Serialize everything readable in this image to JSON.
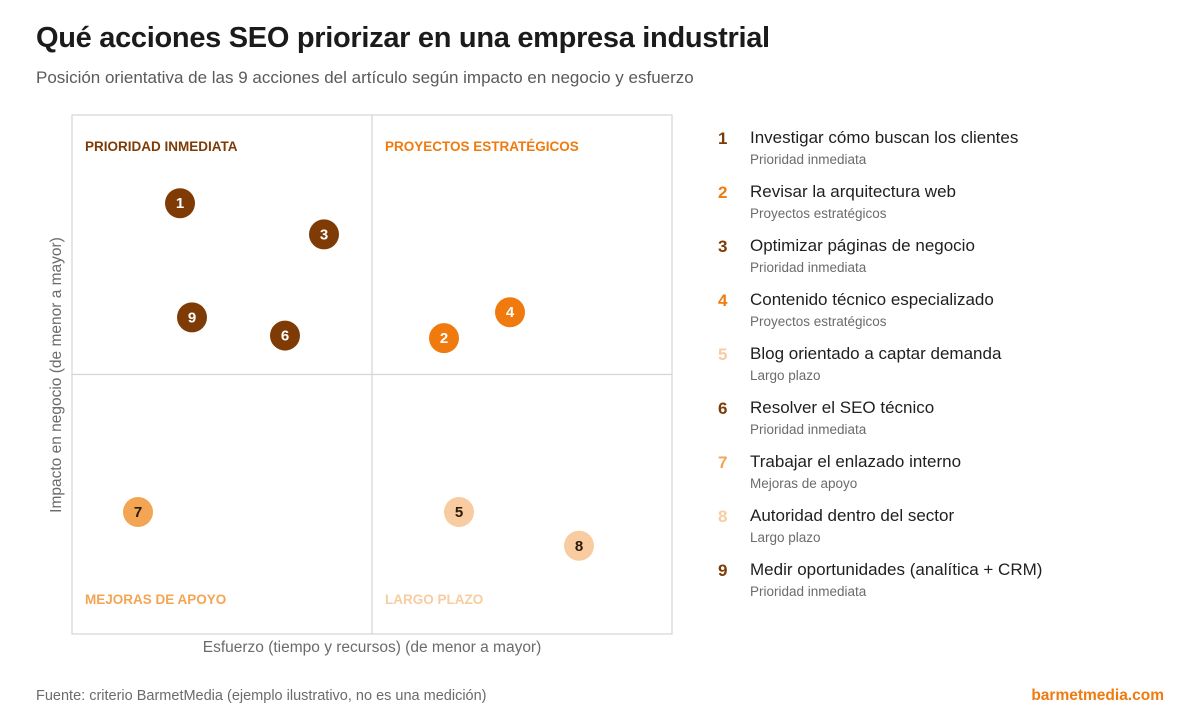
{
  "header": {
    "title": "Qué acciones SEO priorizar en una empresa industrial",
    "subtitle": "Posición orientativa de las 9 acciones del artículo según impacto en negocio y esfuerzo"
  },
  "colors": {
    "Prioridad inmediata": "#7f3b05",
    "Proyectos estratégicos": "#f07a0e",
    "Mejoras de apoyo": "#f4a553",
    "Largo plazo": "#f8ccA0"
  },
  "chart_data": {
    "type": "scatter",
    "xlabel": "Esfuerzo (tiempo y recursos) (de menor a mayor)",
    "ylabel": "Impacto en negocio (de menor a mayor)",
    "xlim": [
      0,
      10
    ],
    "ylim": [
      0,
      10
    ],
    "quadrants": [
      {
        "label": "PRIORIDAD INMEDIATA",
        "category": "Prioridad inmediata",
        "position": "top-left"
      },
      {
        "label": "PROYECTOS ESTRATÉGICOS",
        "category": "Proyectos estratégicos",
        "position": "top-right"
      },
      {
        "label": "MEJORAS DE APOYO",
        "category": "Mejoras de apoyo",
        "position": "bottom-left"
      },
      {
        "label": "LARGO PLAZO",
        "category": "Largo plazo",
        "position": "bottom-right"
      }
    ],
    "points": [
      {
        "id": "1",
        "name": "Investigar cómo buscan los clientes",
        "category": "Prioridad inmediata",
        "x": 1.8,
        "y": 8.3
      },
      {
        "id": "2",
        "name": "Revisar la arquitectura web",
        "category": "Proyectos estratégicos",
        "x": 6.2,
        "y": 5.7
      },
      {
        "id": "3",
        "name": "Optimizar páginas de negocio",
        "category": "Prioridad inmediata",
        "x": 4.2,
        "y": 7.7
      },
      {
        "id": "4",
        "name": "Contenido técnico especializado",
        "category": "Proyectos estratégicos",
        "x": 7.3,
        "y": 6.2
      },
      {
        "id": "5",
        "name": "Blog orientado a captar demanda",
        "category": "Largo plazo",
        "x": 6.45,
        "y": 2.35
      },
      {
        "id": "6",
        "name": "Resolver el SEO técnico",
        "category": "Prioridad inmediata",
        "x": 3.55,
        "y": 5.75
      },
      {
        "id": "7",
        "name": "Trabajar el enlazado interno",
        "category": "Mejoras de apoyo",
        "x": 1.1,
        "y": 2.35
      },
      {
        "id": "8",
        "name": "Autoridad dentro del sector",
        "category": "Largo plazo",
        "x": 8.45,
        "y": 1.7
      },
      {
        "id": "9",
        "name": "Medir oportunidades (analítica + CRM)",
        "category": "Prioridad inmediata",
        "x": 2.0,
        "y": 6.1
      }
    ]
  },
  "footer": {
    "source": "Fuente: criterio BarmetMedia (ejemplo ilustrativo, no es una medición)",
    "brand": "barmetmedia.com"
  }
}
